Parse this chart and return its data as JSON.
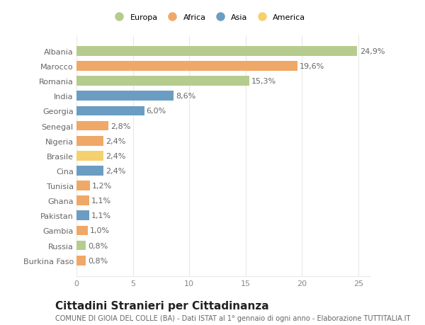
{
  "categories": [
    "Burkina Faso",
    "Russia",
    "Gambia",
    "Pakistan",
    "Ghana",
    "Tunisia",
    "Cina",
    "Brasile",
    "Nigeria",
    "Senegal",
    "Georgia",
    "India",
    "Romania",
    "Marocco",
    "Albania"
  ],
  "values": [
    0.8,
    0.8,
    1.0,
    1.1,
    1.1,
    1.2,
    2.4,
    2.4,
    2.4,
    2.8,
    6.0,
    8.6,
    15.3,
    19.6,
    24.9
  ],
  "labels": [
    "0,8%",
    "0,8%",
    "1,0%",
    "1,1%",
    "1,1%",
    "1,2%",
    "2,4%",
    "2,4%",
    "2,4%",
    "2,8%",
    "6,0%",
    "8,6%",
    "15,3%",
    "19,6%",
    "24,9%"
  ],
  "colors": [
    "#f0a868",
    "#b5cc8e",
    "#f0a868",
    "#6b9dc2",
    "#f0a868",
    "#f0a868",
    "#6b9dc2",
    "#f5d06e",
    "#f0a868",
    "#f0a868",
    "#6b9dc2",
    "#6b9dc2",
    "#b5cc8e",
    "#f0a868",
    "#b5cc8e"
  ],
  "legend_labels": [
    "Europa",
    "Africa",
    "Asia",
    "America"
  ],
  "legend_colors": [
    "#b5cc8e",
    "#f0a868",
    "#6b9dc2",
    "#f5d06e"
  ],
  "title": "Cittadini Stranieri per Cittadinanza",
  "subtitle": "COMUNE DI GIOIA DEL COLLE (BA) - Dati ISTAT al 1° gennaio di ogni anno - Elaborazione TUTTITALIA.IT",
  "xlim": [
    0,
    26
  ],
  "background_color": "#ffffff",
  "grid_color": "#e8e8e8",
  "bar_height": 0.65,
  "label_fontsize": 8.0,
  "tick_fontsize": 8.0,
  "title_fontsize": 11.0,
  "subtitle_fontsize": 7.0
}
